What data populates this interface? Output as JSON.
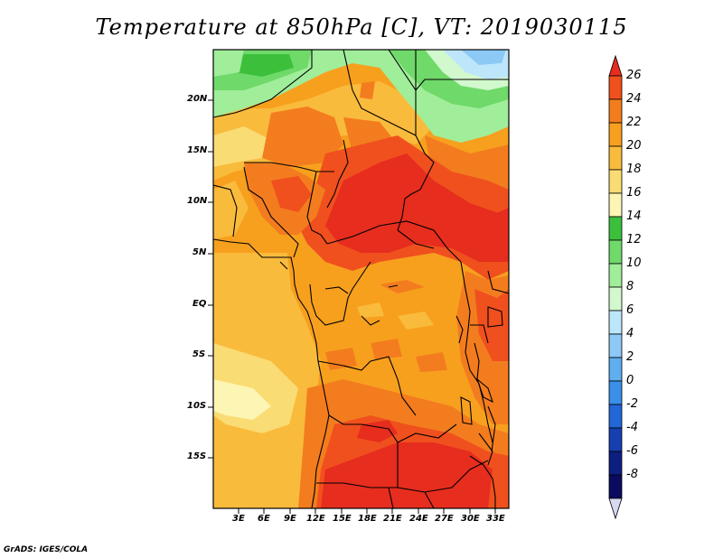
{
  "title": "Temperature at 850hPa [C], VT: 2019030115",
  "credit": "GrADS: IGES/COLA",
  "map": {
    "region": "Central Africa",
    "lat_labels": [
      "20N",
      "15N",
      "10N",
      "5N",
      "EQ",
      "5S",
      "10S",
      "15S"
    ],
    "lat_values": [
      20,
      15,
      10,
      5,
      0,
      -5,
      -10,
      -15
    ],
    "lon_labels": [
      "3E",
      "6E",
      "9E",
      "12E",
      "15E",
      "18E",
      "21E",
      "24E",
      "27E",
      "30E",
      "33E"
    ],
    "lon_values": [
      3,
      6,
      9,
      12,
      15,
      18,
      21,
      24,
      27,
      30,
      33
    ],
    "lon_range": [
      0,
      34.5
    ],
    "lat_range": [
      -19.5,
      25
    ]
  },
  "colorbar": {
    "levels": [
      "26",
      "24",
      "22",
      "20",
      "18",
      "16",
      "14",
      "12",
      "10",
      "8",
      "6",
      "4",
      "2",
      "0",
      "-2",
      "-4",
      "-6",
      "-8"
    ],
    "colors": [
      "#e62d1e",
      "#f0501e",
      "#f37d1e",
      "#f7a01e",
      "#f9bb3c",
      "#fadc74",
      "#fdf5b4",
      "#3cc03c",
      "#6fd96a",
      "#a0ed9a",
      "#d2f8ce",
      "#bde6fa",
      "#8dc9f5",
      "#5eaef0",
      "#3a8fe8",
      "#2266d8",
      "#1640b0",
      "#0d1f80",
      "#0a0a60",
      "#d8d8f0"
    ]
  }
}
